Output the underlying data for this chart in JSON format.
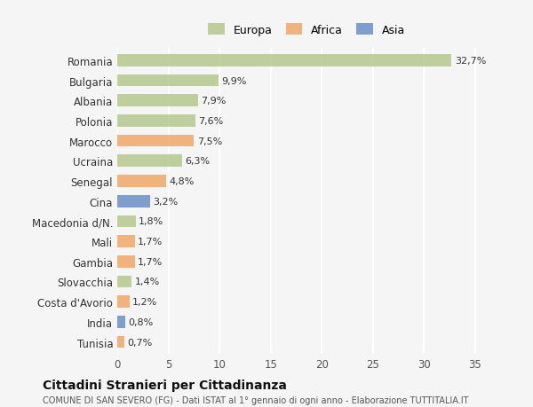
{
  "countries": [
    "Romania",
    "Bulgaria",
    "Albania",
    "Polonia",
    "Marocco",
    "Ucraina",
    "Senegal",
    "Cina",
    "Macedonia d/N.",
    "Mali",
    "Gambia",
    "Slovacchia",
    "Costa d'Avorio",
    "India",
    "Tunisia"
  ],
  "values": [
    32.7,
    9.9,
    7.9,
    7.6,
    7.5,
    6.3,
    4.8,
    3.2,
    1.8,
    1.7,
    1.7,
    1.4,
    1.2,
    0.8,
    0.7
  ],
  "continents": [
    "Europa",
    "Europa",
    "Europa",
    "Europa",
    "Africa",
    "Europa",
    "Africa",
    "Asia",
    "Europa",
    "Africa",
    "Africa",
    "Europa",
    "Africa",
    "Asia",
    "Africa"
  ],
  "colors": {
    "Europa": "#b5c98e",
    "Africa": "#f0a868",
    "Asia": "#6a8fc8"
  },
  "bg_color": "#f5f5f5",
  "title": "Cittadini Stranieri per Cittadinanza",
  "subtitle": "COMUNE DI SAN SEVERO (FG) - Dati ISTAT al 1° gennaio di ogni anno - Elaborazione TUTTITALIA.IT",
  "xlabel_ticks": [
    0,
    5,
    10,
    15,
    20,
    25,
    30,
    35
  ],
  "xlim": [
    0,
    37
  ],
  "legend_order": [
    "Europa",
    "Africa",
    "Asia"
  ]
}
